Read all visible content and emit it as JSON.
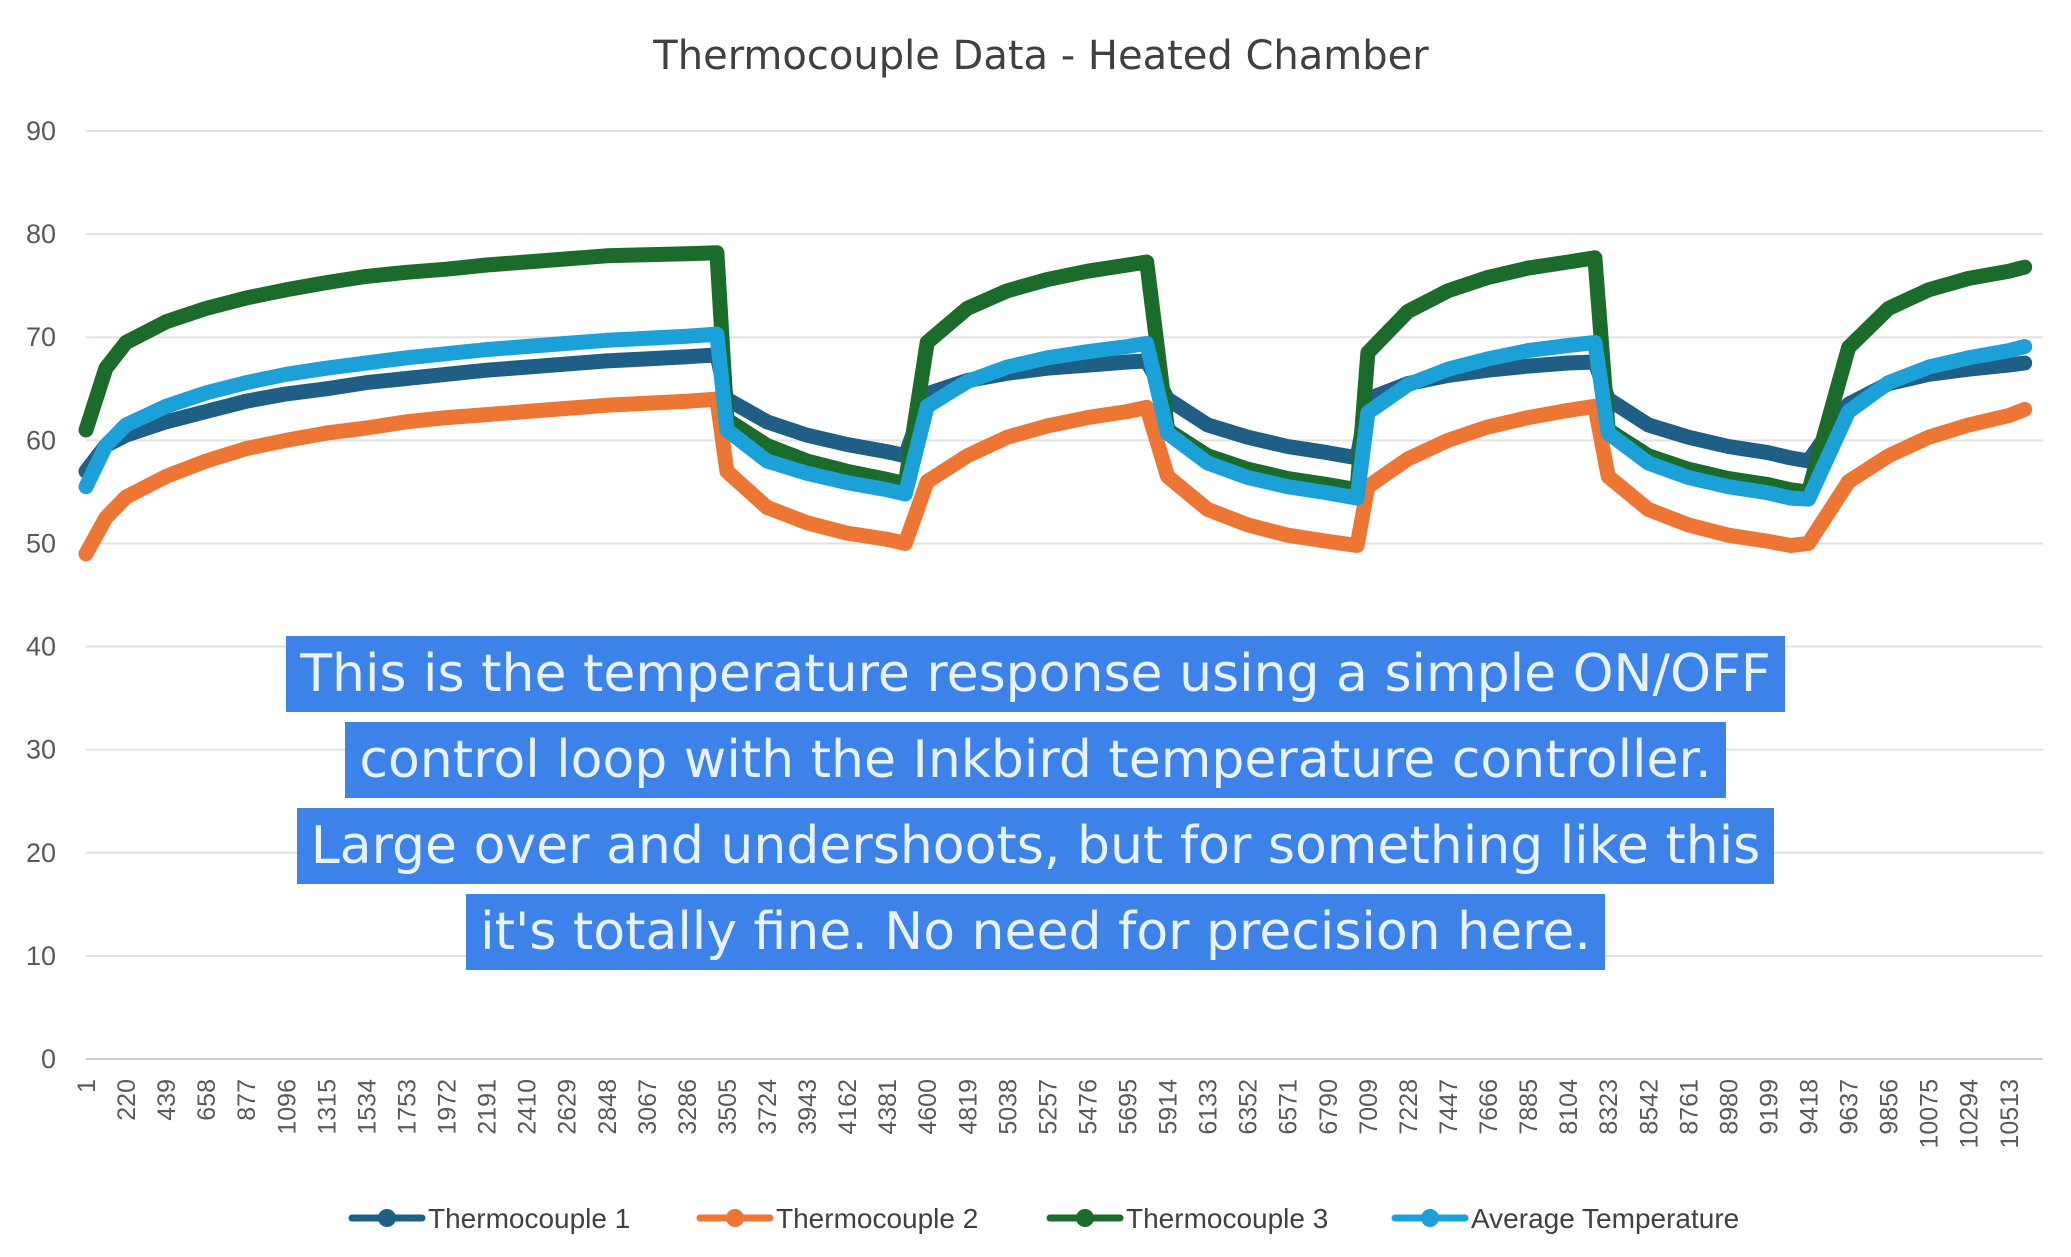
{
  "chart_data": {
    "type": "line",
    "title": "Thermocouple Data - Heated Chamber",
    "xlabel": "",
    "ylabel": "",
    "ylim": [
      0,
      90
    ],
    "yticks": [
      0,
      10,
      20,
      30,
      40,
      50,
      60,
      70,
      80,
      90
    ],
    "xlim": [
      1,
      10700
    ],
    "grid": "horizontal",
    "legend_position": "bottom",
    "categories": [
      "1",
      "220",
      "439",
      "658",
      "877",
      "1096",
      "1315",
      "1534",
      "1753",
      "1972",
      "2191",
      "2410",
      "2629",
      "2848",
      "3067",
      "3286",
      "3505",
      "3724",
      "3943",
      "4162",
      "4381",
      "4600",
      "4819",
      "5038",
      "5257",
      "5476",
      "5695",
      "5914",
      "6133",
      "6352",
      "6571",
      "6790",
      "7009",
      "7228",
      "7447",
      "7666",
      "7885",
      "8104",
      "8323",
      "8542",
      "8761",
      "8980",
      "9199",
      "9418",
      "9637",
      "9856",
      "10075",
      "10294",
      "10513"
    ],
    "series": [
      {
        "name": "Thermocouple 1",
        "color": "#1f5f85",
        "x": [
          1,
          110,
          220,
          439,
          658,
          877,
          1096,
          1315,
          1534,
          1753,
          1972,
          2191,
          2410,
          2629,
          2848,
          3067,
          3286,
          3450,
          3505,
          3724,
          3943,
          4162,
          4381,
          4480,
          4600,
          4819,
          5038,
          5257,
          5476,
          5695,
          5800,
          5914,
          6133,
          6352,
          6571,
          6790,
          6950,
          7009,
          7228,
          7447,
          7666,
          7885,
          8104,
          8250,
          8323,
          8542,
          8761,
          8980,
          9199,
          9320,
          9418,
          9637,
          9856,
          10075,
          10294,
          10513,
          10600
        ],
        "values": [
          57,
          59.5,
          60.5,
          61.8,
          62.8,
          63.8,
          64.5,
          65,
          65.6,
          66,
          66.4,
          66.8,
          67.1,
          67.4,
          67.7,
          67.9,
          68.1,
          68.3,
          64,
          61.8,
          60.5,
          59.6,
          58.9,
          58.5,
          64.5,
          65.8,
          66.5,
          67,
          67.3,
          67.6,
          67.7,
          64,
          61.5,
          60.3,
          59.4,
          58.8,
          58.3,
          64,
          65.5,
          66.3,
          66.8,
          67.2,
          67.5,
          67.6,
          64,
          61.5,
          60.3,
          59.4,
          58.8,
          58.3,
          58,
          63.5,
          65.5,
          66.4,
          66.9,
          67.3,
          67.5
        ]
      },
      {
        "name": "Thermocouple 2",
        "color": "#ed7634",
        "x": [
          1,
          110,
          220,
          439,
          658,
          877,
          1096,
          1315,
          1534,
          1753,
          1972,
          2191,
          2410,
          2629,
          2848,
          3067,
          3286,
          3450,
          3505,
          3724,
          3943,
          4162,
          4381,
          4480,
          4600,
          4819,
          5038,
          5257,
          5476,
          5695,
          5800,
          5914,
          6133,
          6352,
          6571,
          6790,
          6950,
          7009,
          7228,
          7447,
          7666,
          7885,
          8104,
          8250,
          8323,
          8542,
          8761,
          8980,
          9199,
          9320,
          9418,
          9637,
          9856,
          10075,
          10294,
          10513,
          10600
        ],
        "values": [
          49,
          52.5,
          54.5,
          56.5,
          58,
          59.2,
          60,
          60.7,
          61.2,
          61.8,
          62.2,
          62.5,
          62.8,
          63.1,
          63.4,
          63.6,
          63.8,
          64,
          57,
          53.5,
          52,
          51,
          50.4,
          50,
          56,
          58.5,
          60.3,
          61.4,
          62.2,
          62.8,
          63.2,
          56.5,
          53.3,
          51.8,
          50.8,
          50.2,
          49.8,
          55.5,
          58.2,
          60,
          61.3,
          62.2,
          62.9,
          63.3,
          56.5,
          53.3,
          51.8,
          50.8,
          50.2,
          49.8,
          50,
          56,
          58.5,
          60.3,
          61.5,
          62.4,
          63
        ]
      },
      {
        "name": "Thermocouple 3",
        "color": "#1b6b2a",
        "x": [
          1,
          110,
          220,
          439,
          658,
          877,
          1096,
          1315,
          1534,
          1753,
          1972,
          2191,
          2410,
          2629,
          2848,
          3067,
          3286,
          3450,
          3505,
          3724,
          3943,
          4162,
          4381,
          4480,
          4600,
          4819,
          5038,
          5257,
          5476,
          5695,
          5800,
          5914,
          6133,
          6352,
          6571,
          6790,
          6950,
          7009,
          7228,
          7447,
          7666,
          7885,
          8104,
          8250,
          8323,
          8542,
          8761,
          8980,
          9199,
          9320,
          9418,
          9637,
          9856,
          10075,
          10294,
          10513,
          10600
        ],
        "values": [
          61,
          67,
          69.5,
          71.5,
          72.8,
          73.8,
          74.6,
          75.3,
          75.9,
          76.3,
          76.6,
          77,
          77.3,
          77.6,
          77.9,
          78,
          78.1,
          78.2,
          62,
          59.5,
          58,
          57,
          56.2,
          55.8,
          69.5,
          72.8,
          74.5,
          75.6,
          76.4,
          77,
          77.3,
          61,
          58.5,
          57.2,
          56.3,
          55.7,
          55.2,
          68.5,
          72.5,
          74.5,
          75.8,
          76.7,
          77.3,
          77.7,
          61,
          58.5,
          57.2,
          56.3,
          55.7,
          55.2,
          55,
          69,
          72.8,
          74.6,
          75.7,
          76.4,
          76.8
        ]
      },
      {
        "name": "Average Temperature",
        "color": "#1ca0d8",
        "x": [
          1,
          110,
          220,
          439,
          658,
          877,
          1096,
          1315,
          1534,
          1753,
          1972,
          2191,
          2410,
          2629,
          2848,
          3067,
          3286,
          3450,
          3505,
          3724,
          3943,
          4162,
          4381,
          4480,
          4600,
          4819,
          5038,
          5257,
          5476,
          5695,
          5800,
          5914,
          6133,
          6352,
          6571,
          6790,
          6950,
          7009,
          7228,
          7447,
          7666,
          7885,
          8104,
          8250,
          8323,
          8542,
          8761,
          8980,
          9199,
          9320,
          9418,
          9637,
          9856,
          10075,
          10294,
          10513,
          10600
        ],
        "values": [
          55.5,
          59.5,
          61.5,
          63.3,
          64.6,
          65.6,
          66.4,
          67,
          67.5,
          68,
          68.4,
          68.8,
          69.1,
          69.4,
          69.7,
          69.9,
          70.1,
          70.3,
          61,
          58,
          56.8,
          55.9,
          55.2,
          54.8,
          63.3,
          65.7,
          67.1,
          68,
          68.6,
          69.1,
          69.4,
          60.7,
          57.8,
          56.4,
          55.5,
          54.9,
          54.4,
          62.7,
          65.4,
          66.9,
          67.9,
          68.7,
          69.2,
          69.5,
          60.7,
          57.8,
          56.4,
          55.5,
          54.9,
          54.4,
          54.3,
          62.8,
          65.6,
          67.1,
          68,
          68.7,
          69.1
        ]
      }
    ]
  },
  "caption": {
    "lines": [
      "This is the temperature response using a simple ON/OFF",
      "control loop with the Inkbird temperature controller.",
      "Large over and undershoots, but for something like this",
      "it's totally fine. No need for precision here."
    ]
  }
}
